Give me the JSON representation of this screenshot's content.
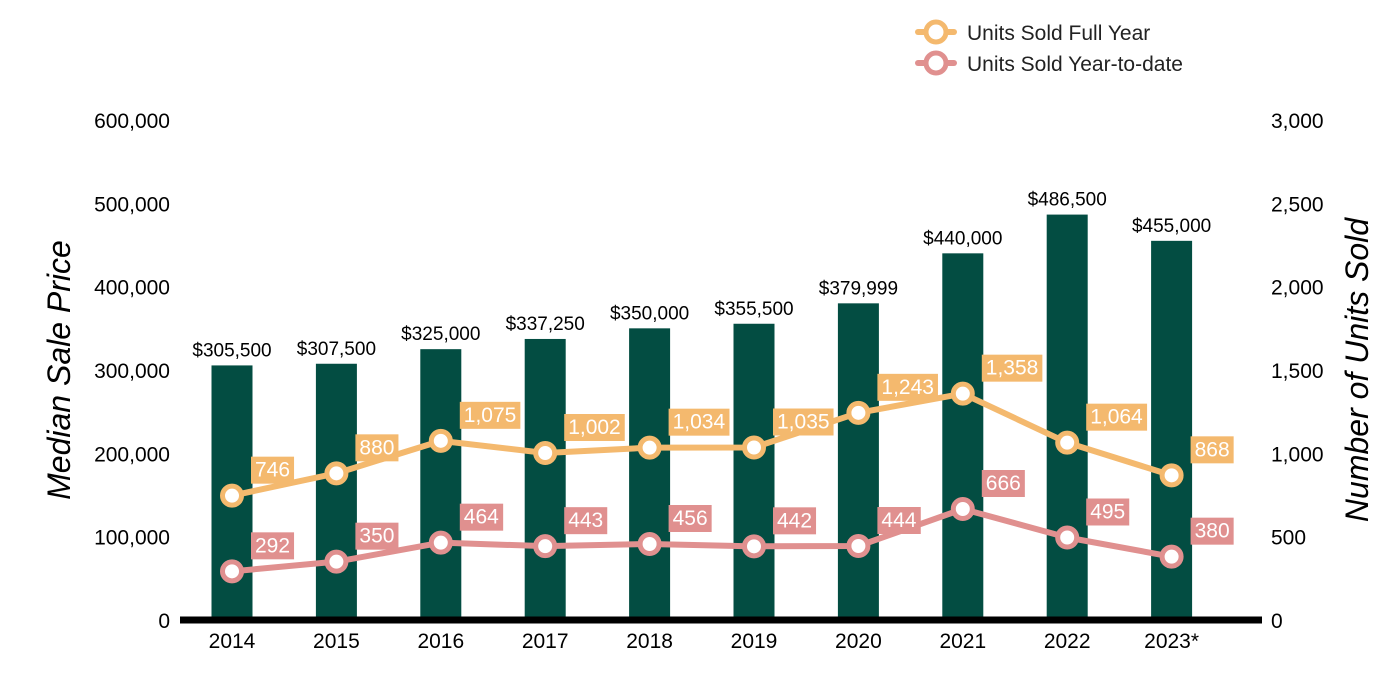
{
  "chart_data": {
    "type": "bar",
    "title": "",
    "categories": [
      "2014",
      "2015",
      "2016",
      "2017",
      "2018",
      "2019",
      "2020",
      "2021",
      "2022",
      "2023*"
    ],
    "y_left": {
      "label": "Median Sale Price",
      "lim": [
        0,
        600000
      ],
      "ticks": [
        0,
        100000,
        200000,
        300000,
        400000,
        500000,
        600000
      ],
      "tick_labels": [
        "0",
        "100,000",
        "200,000",
        "300,000",
        "400,000",
        "500,000",
        "600,000"
      ]
    },
    "y_right": {
      "label": "Number of Units Sold",
      "lim": [
        0,
        3000
      ],
      "ticks": [
        0,
        500,
        1000,
        1500,
        2000,
        2500,
        3000
      ],
      "tick_labels": [
        "0",
        "500",
        "1,000",
        "1,500",
        "2,000",
        "2,500",
        "3,000"
      ]
    },
    "bars": {
      "axis": "left",
      "color": "#034d42",
      "values": [
        305500,
        307500,
        325000,
        337250,
        350000,
        355500,
        379999,
        440000,
        486500,
        455000
      ],
      "labels": [
        "$305,500",
        "$307,500",
        "$325,000",
        "$337,250",
        "$350,000",
        "$355,500",
        "$379,999",
        "$440,000",
        "$486,500",
        "$455,000"
      ]
    },
    "series": [
      {
        "name": "Units Sold Full Year",
        "type": "line",
        "axis": "right",
        "color": "#f4b96e",
        "values": [
          746,
          880,
          1075,
          1002,
          1034,
          1035,
          1243,
          1358,
          1064,
          868
        ],
        "labels": [
          "746",
          "880",
          "1,075",
          "1,002",
          "1,034",
          "1,035",
          "1,243",
          "1,358",
          "1,064",
          "868"
        ]
      },
      {
        "name": "Units Sold Year-to-date",
        "type": "line",
        "axis": "right",
        "color": "#e0908f",
        "values": [
          292,
          350,
          464,
          443,
          456,
          442,
          444,
          666,
          495,
          380
        ],
        "labels": [
          "292",
          "350",
          "464",
          "443",
          "456",
          "442",
          "444",
          "666",
          "495",
          "380"
        ]
      }
    ],
    "legend": {
      "position": "top-right"
    },
    "grid": false
  }
}
